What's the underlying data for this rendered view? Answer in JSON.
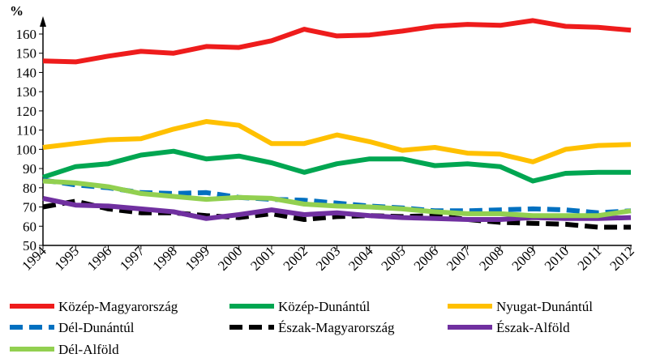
{
  "chart_data": {
    "type": "line",
    "title": "",
    "xlabel": "",
    "ylabel": "%",
    "ylim": [
      50,
      165
    ],
    "yticks": [
      50,
      60,
      70,
      80,
      90,
      100,
      110,
      120,
      130,
      140,
      150,
      160
    ],
    "grid": false,
    "legend_position": "bottom",
    "x": [
      "1994",
      "1995",
      "1996",
      "1997",
      "1998",
      "1999",
      "2000",
      "2001",
      "2002",
      "2003",
      "2004",
      "2005",
      "2006",
      "2007",
      "2008",
      "2009",
      "2010",
      "2011",
      "2012"
    ],
    "series": [
      {
        "name": "Közép-Magyarország",
        "color": "#ee1c1c",
        "dash": "solid",
        "values": [
          146,
          145.5,
          148.5,
          151,
          150,
          153.5,
          153,
          156.5,
          162.5,
          159,
          159.5,
          161.5,
          164,
          165,
          164.5,
          167,
          164,
          163.5,
          162
        ]
      },
      {
        "name": "Közép-Dunántúl",
        "color": "#00a651",
        "dash": "solid",
        "values": [
          85.5,
          91,
          92.5,
          97,
          99,
          95,
          96.5,
          93,
          88,
          92.5,
          95,
          95,
          91.5,
          92.5,
          91,
          83.5,
          87.5,
          88,
          88
        ]
      },
      {
        "name": "Nyugat-Dunántúl",
        "color": "#ffc000",
        "dash": "solid",
        "values": [
          101,
          103,
          105,
          105.5,
          110.5,
          114.5,
          112.5,
          103,
          103,
          107.5,
          104,
          99.5,
          101,
          98,
          97.5,
          93.5,
          100,
          102,
          102.5
        ]
      },
      {
        "name": "Dél-Dunántúl",
        "color": "#0070c0",
        "dash": "dashed",
        "values": [
          84,
          81.5,
          80,
          77.5,
          77,
          77.5,
          75,
          74,
          73.5,
          72,
          70.5,
          69.5,
          68,
          68,
          68.5,
          69,
          68.5,
          67,
          68
        ]
      },
      {
        "name": "Észak-Magyarország",
        "color": "#000000",
        "dash": "dashed",
        "values": [
          70,
          73,
          69,
          67,
          67,
          65.5,
          64.5,
          66.5,
          63.5,
          65,
          65.5,
          65,
          65.5,
          63.5,
          62,
          61.5,
          61,
          59.5,
          59.5
        ]
      },
      {
        "name": "Észak-Alföld",
        "color": "#7030a0",
        "dash": "solid",
        "values": [
          74.5,
          71,
          70.5,
          69,
          67.5,
          64,
          66,
          68.5,
          66,
          67,
          65.5,
          64.5,
          64,
          63.5,
          63.5,
          64.5,
          64,
          64,
          64.5
        ]
      },
      {
        "name": "Dél-Alföld",
        "color": "#92d050",
        "dash": "solid",
        "values": [
          83.5,
          82.5,
          80.5,
          77,
          75.5,
          74,
          75,
          74.5,
          71.5,
          70.5,
          70,
          69,
          67.5,
          66.5,
          66.5,
          65.5,
          65.5,
          65.5,
          68
        ]
      }
    ]
  }
}
